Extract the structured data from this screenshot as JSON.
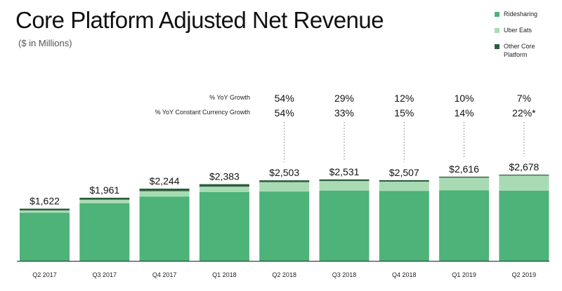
{
  "title": "Core Platform Adjusted Net Revenue",
  "subtitle": "($ in Millions)",
  "colors": {
    "ridesharing": "#4db378",
    "uber_eats": "#a8dbb3",
    "other_core": "#2e5e3c"
  },
  "legend": [
    {
      "label": "Ridesharing",
      "color": "#4db378"
    },
    {
      "label": "Uber Eats",
      "color": "#a8dbb3"
    },
    {
      "label": "Other Core Platform",
      "color": "#2e5e3c"
    }
  ],
  "growth_labels": {
    "yoy": "% YoY Growth",
    "yoy_cc": "% YoY Constant Currency Growth"
  },
  "chart_data": {
    "type": "bar",
    "stacked": true,
    "title": "Core Platform Adjusted Net Revenue",
    "subtitle": "($ in Millions)",
    "categories": [
      "Q2 2017",
      "Q3 2017",
      "Q4 2017",
      "Q1 2018",
      "Q2 2018",
      "Q3 2018",
      "Q4 2018",
      "Q1 2019",
      "Q2 2019"
    ],
    "totals": [
      "$1,622",
      "$1,961",
      "$2,244",
      "$2,383",
      "$2,503",
      "$2,531",
      "$2,507",
      "$2,616",
      "$2,678"
    ],
    "total_values": [
      1622,
      1961,
      2244,
      2383,
      2503,
      2531,
      2507,
      2616,
      2678
    ],
    "series": [
      {
        "name": "Ridesharing",
        "values": [
          1495,
          1790,
          2000,
          2135,
          2155,
          2185,
          2175,
          2190,
          2180
        ]
      },
      {
        "name": "Uber Eats",
        "values": [
          72,
          110,
          165,
          170,
          290,
          295,
          285,
          395,
          470
        ]
      },
      {
        "name": "Other Core Platform",
        "values": [
          55,
          61,
          79,
          78,
          58,
          51,
          47,
          31,
          28
        ]
      }
    ],
    "yoy_growth": [
      "",
      "",
      "",
      "",
      "54%",
      "29%",
      "12%",
      "10%",
      "7%"
    ],
    "yoy_cc_growth": [
      "",
      "",
      "",
      "",
      "54%",
      "33%",
      "15%",
      "14%",
      "22%*"
    ],
    "ylim": [
      0,
      3500
    ],
    "legend_position": "top-right",
    "grid": false
  }
}
